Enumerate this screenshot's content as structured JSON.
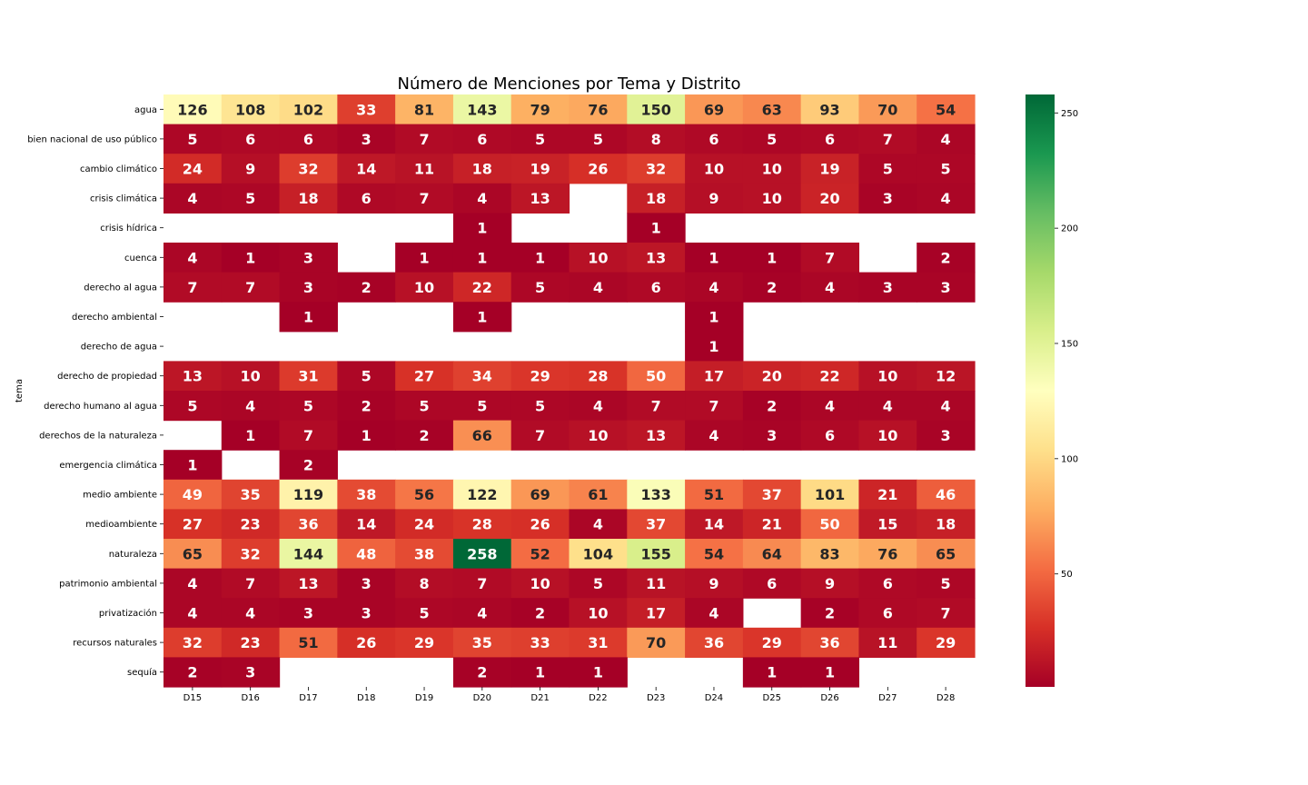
{
  "chart_data": {
    "type": "heatmap",
    "title": "Número de Menciones por Tema y Distrito",
    "xlabel": "",
    "ylabel": "tema",
    "x": [
      "D15",
      "D16",
      "D17",
      "D18",
      "D19",
      "D20",
      "D21",
      "D22",
      "D23",
      "D24",
      "D25",
      "D26",
      "D27",
      "D28"
    ],
    "y": [
      "agua",
      "bien nacional de uso público",
      "cambio climático",
      "crisis climática",
      "crisis hídrica",
      "cuenca",
      "derecho al agua",
      "derecho ambiental",
      "derecho de agua",
      "derecho de propiedad",
      "derecho humano al agua",
      "derechos de la naturaleza",
      "emergencia climática",
      "medio ambiente",
      "medioambiente",
      "naturaleza",
      "patrimonio ambiental",
      "privatización",
      "recursos naturales",
      "sequía"
    ],
    "values": [
      [
        126,
        108,
        102,
        33,
        81,
        143,
        79,
        76,
        150,
        69,
        63,
        93,
        70,
        54
      ],
      [
        5,
        6,
        6,
        3,
        7,
        6,
        5,
        5,
        8,
        6,
        5,
        6,
        7,
        4
      ],
      [
        24,
        9,
        32,
        14,
        11,
        18,
        19,
        26,
        32,
        10,
        10,
        19,
        5,
        5
      ],
      [
        4,
        5,
        18,
        6,
        7,
        4,
        13,
        null,
        18,
        9,
        10,
        20,
        3,
        4
      ],
      [
        null,
        null,
        null,
        null,
        null,
        1,
        null,
        null,
        1,
        null,
        null,
        null,
        null,
        null
      ],
      [
        4,
        1,
        3,
        null,
        1,
        1,
        1,
        10,
        13,
        1,
        1,
        7,
        null,
        2
      ],
      [
        7,
        7,
        3,
        2,
        10,
        22,
        5,
        4,
        6,
        4,
        2,
        4,
        3,
        3
      ],
      [
        null,
        null,
        1,
        null,
        null,
        1,
        null,
        null,
        null,
        1,
        null,
        null,
        null,
        null
      ],
      [
        null,
        null,
        null,
        null,
        null,
        null,
        null,
        null,
        null,
        1,
        null,
        null,
        null,
        null
      ],
      [
        13,
        10,
        31,
        5,
        27,
        34,
        29,
        28,
        50,
        17,
        20,
        22,
        10,
        12
      ],
      [
        5,
        4,
        5,
        2,
        5,
        5,
        5,
        4,
        7,
        7,
        2,
        4,
        4,
        4
      ],
      [
        null,
        1,
        7,
        1,
        2,
        66,
        7,
        10,
        13,
        4,
        3,
        6,
        10,
        3
      ],
      [
        1,
        null,
        2,
        null,
        null,
        null,
        null,
        null,
        null,
        null,
        null,
        null,
        null,
        null
      ],
      [
        49,
        35,
        119,
        38,
        56,
        122,
        69,
        61,
        133,
        51,
        37,
        101,
        21,
        46
      ],
      [
        27,
        23,
        36,
        14,
        24,
        28,
        26,
        4,
        37,
        14,
        21,
        50,
        15,
        18
      ],
      [
        65,
        32,
        144,
        48,
        38,
        258,
        52,
        104,
        155,
        54,
        64,
        83,
        76,
        65
      ],
      [
        4,
        7,
        13,
        3,
        8,
        7,
        10,
        5,
        11,
        9,
        6,
        9,
        6,
        5
      ],
      [
        4,
        4,
        3,
        3,
        5,
        4,
        2,
        10,
        17,
        4,
        null,
        2,
        6,
        7
      ],
      [
        32,
        23,
        51,
        26,
        29,
        35,
        33,
        31,
        70,
        36,
        29,
        36,
        11,
        29
      ],
      [
        2,
        3,
        null,
        null,
        null,
        2,
        1,
        1,
        null,
        null,
        1,
        1,
        null,
        null
      ]
    ],
    "colormap": "RdYlGn",
    "vmin": 1,
    "vmax": 258,
    "colorbar_ticks": [
      50,
      100,
      150,
      200,
      250
    ],
    "annot": true
  }
}
